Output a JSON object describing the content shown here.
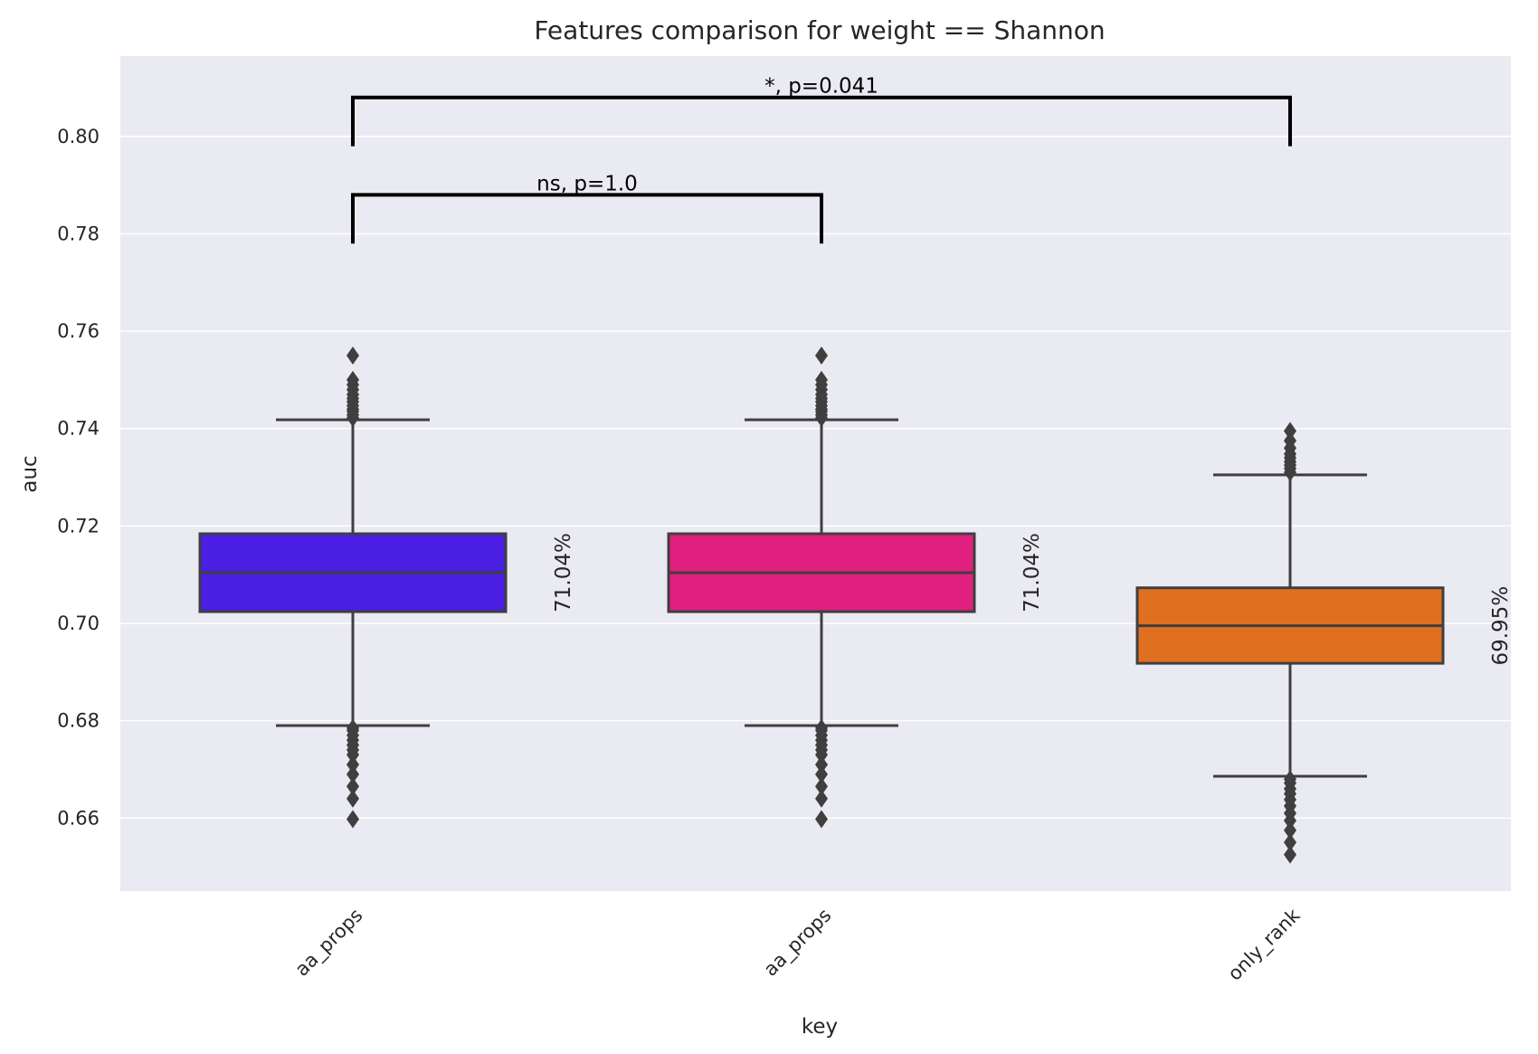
{
  "chart_data": {
    "type": "box",
    "title": "Features comparison for weight == Shannon",
    "xlabel": "key",
    "ylabel": "auc",
    "ylim": [
      0.645,
      0.8165
    ],
    "yticks": [
      "0.66",
      "0.68",
      "0.70",
      "0.72",
      "0.74",
      "0.76",
      "0.78",
      "0.80"
    ],
    "grid": true,
    "categories": [
      "aa_props",
      "aa_props",
      "only_rank"
    ],
    "boxes": [
      {
        "category": "aa_props",
        "color": "#4a1fe3",
        "q1": 0.7024,
        "median": 0.7104,
        "q3": 0.7184,
        "whisker_low": 0.679,
        "whisker_high": 0.7418,
        "outliers_high": [
          0.7422,
          0.7428,
          0.7435,
          0.744,
          0.7447,
          0.7455,
          0.7462,
          0.747,
          0.748,
          0.749,
          0.75,
          0.755
        ],
        "outliers_low": [
          0.6785,
          0.678,
          0.677,
          0.676,
          0.675,
          0.674,
          0.673,
          0.671,
          0.669,
          0.6665,
          0.664,
          0.6598
        ],
        "label": "71.04%"
      },
      {
        "category": "aa_props",
        "color": "#e11f7e",
        "q1": 0.7024,
        "median": 0.7104,
        "q3": 0.7184,
        "whisker_low": 0.679,
        "whisker_high": 0.7418,
        "outliers_high": [
          0.7422,
          0.7428,
          0.7435,
          0.744,
          0.7447,
          0.7455,
          0.7462,
          0.747,
          0.748,
          0.749,
          0.75,
          0.755
        ],
        "outliers_low": [
          0.6785,
          0.678,
          0.677,
          0.676,
          0.675,
          0.674,
          0.673,
          0.671,
          0.669,
          0.6665,
          0.664,
          0.6598
        ],
        "label": "71.04%"
      },
      {
        "category": "only_rank",
        "color": "#e07020",
        "q1": 0.6918,
        "median": 0.6995,
        "q3": 0.7073,
        "whisker_low": 0.6686,
        "whisker_high": 0.7305,
        "outliers_high": [
          0.731,
          0.7318,
          0.7325,
          0.7332,
          0.734,
          0.7348,
          0.736,
          0.7375,
          0.7395
        ],
        "outliers_low": [
          0.668,
          0.6672,
          0.666,
          0.665,
          0.6638,
          0.6625,
          0.661,
          0.6595,
          0.6575,
          0.655,
          0.6525
        ],
        "label": "69.95%"
      }
    ],
    "significance": [
      {
        "from": 0,
        "to": 1,
        "text": "ns, p=1.0",
        "y": 0.788,
        "drop_to": 0.778
      },
      {
        "from": 0,
        "to": 2,
        "text": "*, p=0.041",
        "y": 0.808,
        "drop_to": 0.798
      }
    ]
  }
}
